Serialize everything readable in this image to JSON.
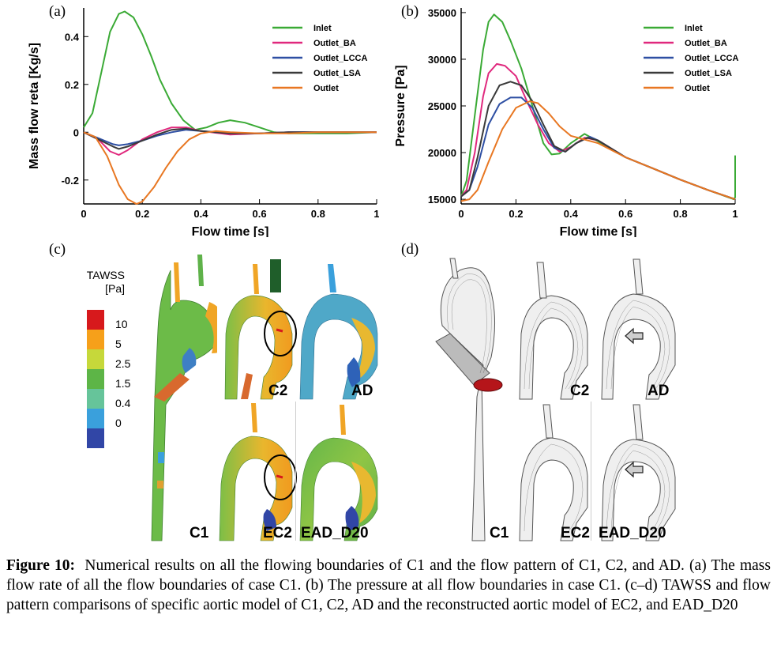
{
  "panels": {
    "a_letter": "(a)",
    "b_letter": "(b)",
    "c_letter": "(c)",
    "d_letter": "(d)"
  },
  "chart_data": [
    {
      "type": "line",
      "panel": "(a)",
      "xlabel": "Flow time [s]",
      "ylabel": "Mass flow reta [Kg/s]",
      "xlim": [
        0,
        1
      ],
      "ylim": [
        -0.3,
        0.52
      ],
      "xticks": [
        "0",
        "0.2",
        "0.4",
        "0.6",
        "0.8",
        "1"
      ],
      "yticks": [
        "-0.2",
        "0",
        "0.2",
        "0.4"
      ],
      "legend_placement": "top-right",
      "grid": false,
      "series": [
        {
          "name": "Inlet",
          "color": "#3aaa35",
          "x": [
            0,
            0.03,
            0.06,
            0.09,
            0.12,
            0.14,
            0.17,
            0.2,
            0.23,
            0.26,
            0.3,
            0.34,
            0.38,
            0.42,
            0.46,
            0.5,
            0.55,
            0.6,
            0.65,
            0.7,
            0.8,
            0.9,
            1.0
          ],
          "y": [
            0.02,
            0.08,
            0.25,
            0.42,
            0.495,
            0.505,
            0.48,
            0.41,
            0.32,
            0.22,
            0.12,
            0.05,
            0.01,
            0.02,
            0.04,
            0.05,
            0.04,
            0.02,
            0.0,
            -0.005,
            -0.005,
            -0.005,
            0.0
          ]
        },
        {
          "name": "Outlet_BA",
          "color": "#e0287d",
          "x": [
            0,
            0.05,
            0.09,
            0.12,
            0.15,
            0.2,
            0.25,
            0.3,
            0.35,
            0.4,
            0.5,
            0.6,
            0.7,
            0.8,
            0.9,
            1.0
          ],
          "y": [
            0,
            -0.03,
            -0.08,
            -0.095,
            -0.075,
            -0.03,
            0.0,
            0.02,
            0.02,
            0.005,
            -0.01,
            -0.005,
            0.0,
            0.0,
            0.0,
            0.0
          ]
        },
        {
          "name": "Outlet_LCCA",
          "color": "#2e4fa3",
          "x": [
            0,
            0.05,
            0.1,
            0.12,
            0.15,
            0.2,
            0.25,
            0.3,
            0.35,
            0.4,
            0.5,
            0.6,
            0.7,
            0.8,
            0.9,
            1.0
          ],
          "y": [
            0,
            -0.025,
            -0.05,
            -0.055,
            -0.05,
            -0.035,
            -0.015,
            0.0,
            0.01,
            0.005,
            -0.005,
            -0.005,
            0.0,
            0.0,
            0.0,
            0.0
          ]
        },
        {
          "name": "Outlet_LSA",
          "color": "#3a3a3a",
          "x": [
            0,
            0.05,
            0.1,
            0.12,
            0.15,
            0.2,
            0.25,
            0.3,
            0.35,
            0.4,
            0.5,
            0.6,
            0.7,
            0.8,
            0.9,
            1.0
          ],
          "y": [
            0,
            -0.03,
            -0.06,
            -0.07,
            -0.06,
            -0.035,
            -0.01,
            0.01,
            0.015,
            0.005,
            -0.005,
            -0.005,
            0.0,
            0.0,
            0.0,
            0.0
          ]
        },
        {
          "name": "Outlet",
          "color": "#e87722",
          "x": [
            0,
            0.04,
            0.08,
            0.12,
            0.15,
            0.18,
            0.2,
            0.24,
            0.28,
            0.32,
            0.36,
            0.4,
            0.45,
            0.5,
            0.6,
            0.7,
            0.8,
            0.9,
            1.0
          ],
          "y": [
            0,
            -0.02,
            -0.1,
            -0.22,
            -0.28,
            -0.3,
            -0.29,
            -0.23,
            -0.15,
            -0.08,
            -0.03,
            -0.005,
            0.005,
            0.0,
            -0.005,
            -0.005,
            0.0,
            0.0,
            0.0
          ]
        }
      ]
    },
    {
      "type": "line",
      "panel": "(b)",
      "xlabel": "Flow time [s]",
      "ylabel": "Pressure [Pa]",
      "xlim": [
        0,
        1
      ],
      "ylim": [
        14500,
        35500
      ],
      "xticks": [
        "0",
        "0.2",
        "0.4",
        "0.6",
        "0.8",
        "1"
      ],
      "yticks": [
        "15000",
        "20000",
        "25000",
        "30000",
        "35000"
      ],
      "legend_placement": "top-right",
      "grid": false,
      "series": [
        {
          "name": "Inlet",
          "color": "#3aaa35",
          "x": [
            0,
            0.02,
            0.05,
            0.08,
            0.1,
            0.12,
            0.15,
            0.18,
            0.22,
            0.26,
            0.3,
            0.33,
            0.36,
            0.4,
            0.45,
            0.5,
            0.6,
            0.7,
            0.8,
            0.9,
            0.995,
            1.0,
            1.0
          ],
          "y": [
            15300,
            17000,
            24000,
            31000,
            34000,
            34800,
            34000,
            32000,
            29000,
            25000,
            21000,
            19800,
            19900,
            21000,
            22000,
            21200,
            19500,
            18300,
            17100,
            16000,
            15000,
            15200,
            19700
          ]
        },
        {
          "name": "Outlet_BA",
          "color": "#e0287d",
          "x": [
            0,
            0.02,
            0.05,
            0.08,
            0.1,
            0.13,
            0.16,
            0.2,
            0.24,
            0.28,
            0.32,
            0.36,
            0.4,
            0.45,
            0.5,
            0.6,
            0.7,
            0.8,
            0.9,
            1.0
          ],
          "y": [
            15300,
            16000,
            20000,
            26000,
            28500,
            29500,
            29300,
            28200,
            25500,
            23000,
            21000,
            20100,
            20600,
            21600,
            21300,
            19500,
            18300,
            17100,
            16000,
            15000
          ]
        },
        {
          "name": "Outlet_LCCA",
          "color": "#2e4fa3",
          "x": [
            0,
            0.03,
            0.06,
            0.1,
            0.14,
            0.18,
            0.22,
            0.26,
            0.3,
            0.34,
            0.38,
            0.42,
            0.47,
            0.5,
            0.6,
            0.7,
            0.8,
            0.9,
            1.0
          ],
          "y": [
            15300,
            16000,
            18500,
            23000,
            25200,
            25900,
            25900,
            24800,
            22500,
            20500,
            20100,
            21000,
            21700,
            21300,
            19500,
            18300,
            17100,
            16000,
            15000
          ]
        },
        {
          "name": "Outlet_LSA",
          "color": "#3a3a3a",
          "x": [
            0,
            0.03,
            0.06,
            0.1,
            0.14,
            0.18,
            0.22,
            0.26,
            0.3,
            0.34,
            0.38,
            0.42,
            0.46,
            0.5,
            0.6,
            0.7,
            0.8,
            0.9,
            1.0
          ],
          "y": [
            15300,
            16000,
            19500,
            25000,
            27200,
            27600,
            27200,
            25500,
            23000,
            20700,
            20100,
            21000,
            21600,
            21300,
            19500,
            18300,
            17100,
            16000,
            15000
          ]
        },
        {
          "name": "Outlet",
          "color": "#e87722",
          "x": [
            0,
            0.03,
            0.06,
            0.1,
            0.15,
            0.2,
            0.25,
            0.28,
            0.32,
            0.36,
            0.4,
            0.45,
            0.5,
            0.6,
            0.7,
            0.8,
            0.9,
            1.0
          ],
          "y": [
            14800,
            15000,
            16000,
            19000,
            22500,
            24800,
            25500,
            25300,
            24200,
            22800,
            21800,
            21400,
            21000,
            19500,
            18300,
            17100,
            16000,
            15000
          ]
        }
      ]
    }
  ],
  "colorbar": {
    "title_line1": "TAWSS",
    "title_line2": "[Pa]",
    "ticks": [
      "10",
      "5",
      "2.5",
      "1.5",
      "0.4",
      "0"
    ],
    "colors": [
      "#d7191c",
      "#f6a01a",
      "#c6d83a",
      "#5db547",
      "#66c49a",
      "#3aa0dc",
      "#3146a6"
    ]
  },
  "panel_c_labels": {
    "c1": "C1",
    "c2": "C2",
    "ad": "AD",
    "ec2": "EC2",
    "ead": "EAD_D20"
  },
  "panel_d_labels": {
    "c1": "C1",
    "c2": "C2",
    "ad": "AD",
    "ec2": "EC2",
    "ead": "EAD_D20"
  },
  "caption": {
    "label": "Figure 10:",
    "text": "Numerical results on all the flowing boundaries of C1 and the flow pattern of C1, C2, and AD. (a) The mass flow rate of all the flow boundaries of case C1. (b) The pressure at all flow boundaries in case C1. (c–d) TAWSS and flow pattern comparisons of specific aortic model of C1, C2, AD and the reconstructed aortic model of EC2, and EAD_D20"
  }
}
